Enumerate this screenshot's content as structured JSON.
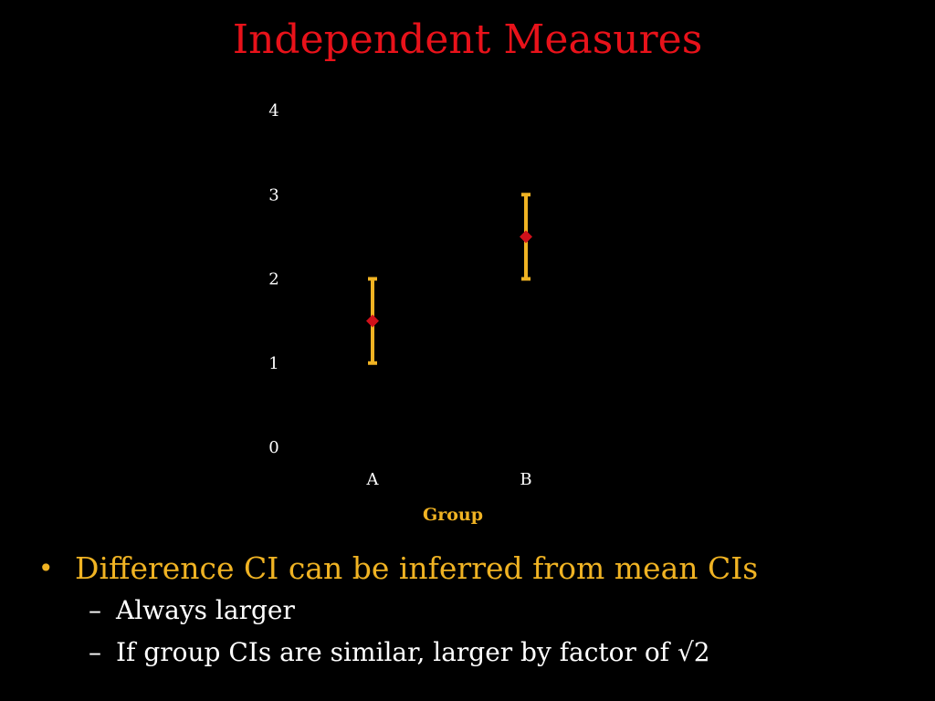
{
  "slide": {
    "title": "Independent Measures"
  },
  "colors": {
    "title": "#e8121a",
    "error_bar": "#f0b323",
    "point": "#d0101a",
    "text": "#ffffff",
    "bullet_main": "#f0b323"
  },
  "chart_data": {
    "type": "scatter",
    "categories": [
      "A",
      "B"
    ],
    "series": [
      {
        "values": [
          1.5,
          2.5
        ],
        "ci_low": [
          1.0,
          2.0
        ],
        "ci_high": [
          2.0,
          3.0
        ]
      }
    ],
    "y_ticks": [
      "0",
      "1",
      "2",
      "3",
      "4"
    ],
    "ylim": [
      0,
      4
    ],
    "xlabel": "Group",
    "ylabel": "",
    "grid": false
  },
  "bullets": {
    "main": "Difference CI can be inferred from mean CIs",
    "sub": [
      "Always larger",
      "If group CIs are similar, larger by factor of √2"
    ],
    "dash": "–"
  }
}
